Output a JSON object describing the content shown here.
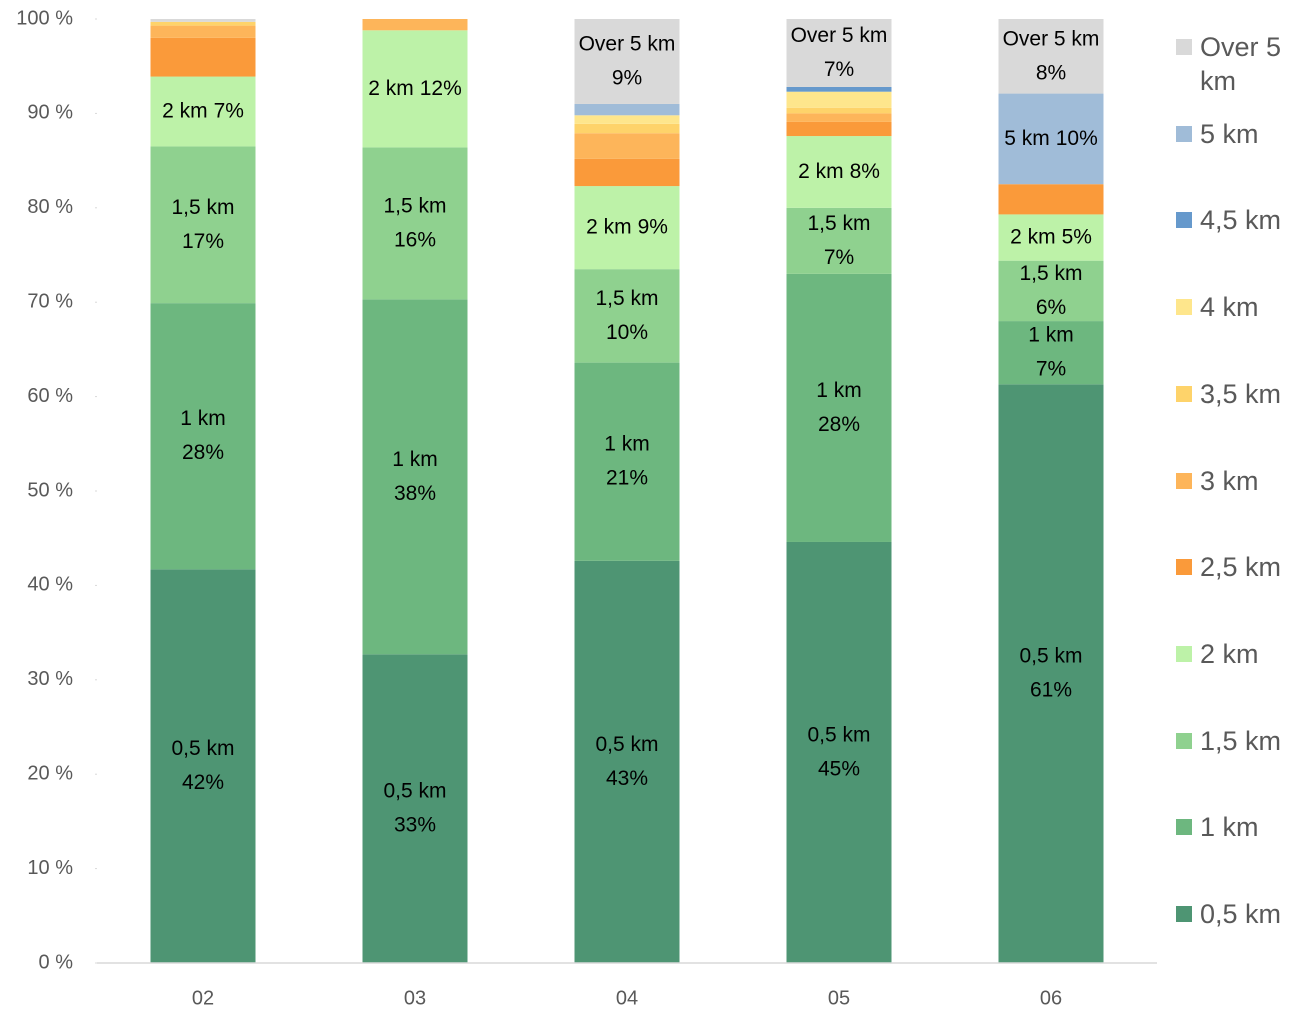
{
  "chart_data": {
    "type": "stacked_bar",
    "categories": [
      "02",
      "03",
      "04",
      "05",
      "06"
    ],
    "ylim": [
      0,
      100
    ],
    "yticks": [
      {
        "value": 0,
        "label": "0 %"
      },
      {
        "value": 10,
        "label": "10 %"
      },
      {
        "value": 20,
        "label": "20 %"
      },
      {
        "value": 30,
        "label": "30 %"
      },
      {
        "value": 40,
        "label": "40 %"
      },
      {
        "value": 50,
        "label": "50 %"
      },
      {
        "value": 60,
        "label": "60 %"
      },
      {
        "value": 70,
        "label": "70 %"
      },
      {
        "value": 80,
        "label": "80 %"
      },
      {
        "value": 90,
        "label": "90 %"
      },
      {
        "value": 100,
        "label": "100 %"
      }
    ],
    "grid": false,
    "legend": "right",
    "series": [
      {
        "name": "0,5 km",
        "color": "#4e9573",
        "values": [
          41.7,
          32.7,
          42.6,
          44.6,
          61.3
        ],
        "value_labels": [
          "42%",
          "33%",
          "43%",
          "45%",
          "61%"
        ]
      },
      {
        "name": "1 km",
        "color": "#6db77f",
        "values": [
          28.2,
          37.6,
          21.0,
          28.4,
          6.7
        ],
        "value_labels": [
          "28%",
          "38%",
          "21%",
          "28%",
          "7%"
        ]
      },
      {
        "name": "1,5 km",
        "color": "#8fd18f",
        "values": [
          16.6,
          16.1,
          9.9,
          7.0,
          6.4
        ],
        "value_labels": [
          "17%",
          "16%",
          "10%",
          "7%",
          "6%"
        ]
      },
      {
        "name": "2 km",
        "color": "#bdf2a8",
        "values": [
          7.4,
          12.4,
          8.8,
          7.6,
          4.9
        ],
        "value_labels": [
          "7%",
          "12%",
          "9%",
          "8%",
          "5%"
        ]
      },
      {
        "name": "2,5 km",
        "color": "#fa9a3a",
        "values": [
          4.1,
          0,
          2.9,
          1.5,
          3.2
        ],
        "value_labels": [
          null,
          null,
          null,
          null,
          null
        ]
      },
      {
        "name": "3 km",
        "color": "#fdb55a",
        "values": [
          1.3,
          1.2,
          2.7,
          0.9,
          0
        ],
        "value_labels": [
          null,
          null,
          null,
          null,
          null
        ]
      },
      {
        "name": "3,5 km",
        "color": "#fed36a",
        "values": [
          0.4,
          0,
          1.0,
          0.6,
          0
        ],
        "value_labels": [
          null,
          null,
          null,
          null,
          null
        ]
      },
      {
        "name": "4 km",
        "color": "#fee68c",
        "values": [
          0,
          0,
          0.9,
          1.7,
          0
        ],
        "value_labels": [
          null,
          null,
          null,
          null,
          null
        ]
      },
      {
        "name": "4,5 km",
        "color": "#6699cc",
        "values": [
          0,
          0,
          0,
          0.5,
          0
        ],
        "value_labels": [
          null,
          null,
          null,
          null,
          null
        ]
      },
      {
        "name": "5 km",
        "color": "#a0bcd8",
        "values": [
          0,
          0,
          1.2,
          0,
          9.6
        ],
        "value_labels": [
          null,
          null,
          null,
          null,
          "10%"
        ]
      },
      {
        "name": "Over 5 km",
        "color": "#d9d9d9",
        "values": [
          0.3,
          0,
          9.0,
          7.2,
          7.9
        ],
        "value_labels": [
          null,
          null,
          "9%",
          "7%",
          "8%"
        ]
      }
    ]
  }
}
